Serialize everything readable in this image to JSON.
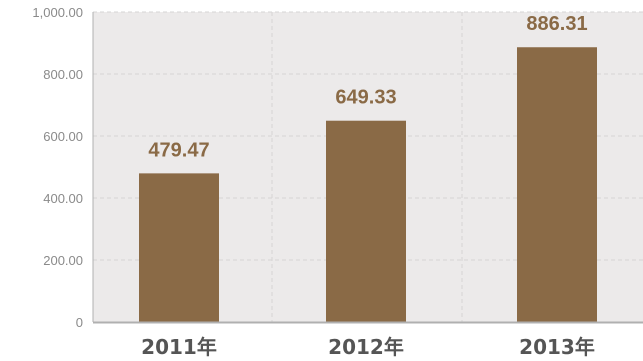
{
  "chart_data": {
    "type": "bar",
    "categories": [
      "2011年",
      "2012年",
      "2013年"
    ],
    "values": [
      479.47,
      649.33,
      886.31
    ],
    "data_labels": [
      "479.47",
      "649.33",
      "886.31"
    ],
    "y_ticks": [
      0,
      200,
      400,
      600,
      800,
      1000
    ],
    "y_tick_labels": [
      "0",
      "200.00",
      "400.00",
      "600.00",
      "800.00",
      "1,000.00"
    ],
    "ylim": [
      0,
      1000
    ],
    "grid": true,
    "colors": {
      "bar": "#8a6a46",
      "data_label": "#8a6a46",
      "plot_background": "#eceaea",
      "grid": "#d6d4d4",
      "axis": "#b0b0b0",
      "tick_label": "#8a8a8a",
      "category_label": "#555555"
    }
  }
}
